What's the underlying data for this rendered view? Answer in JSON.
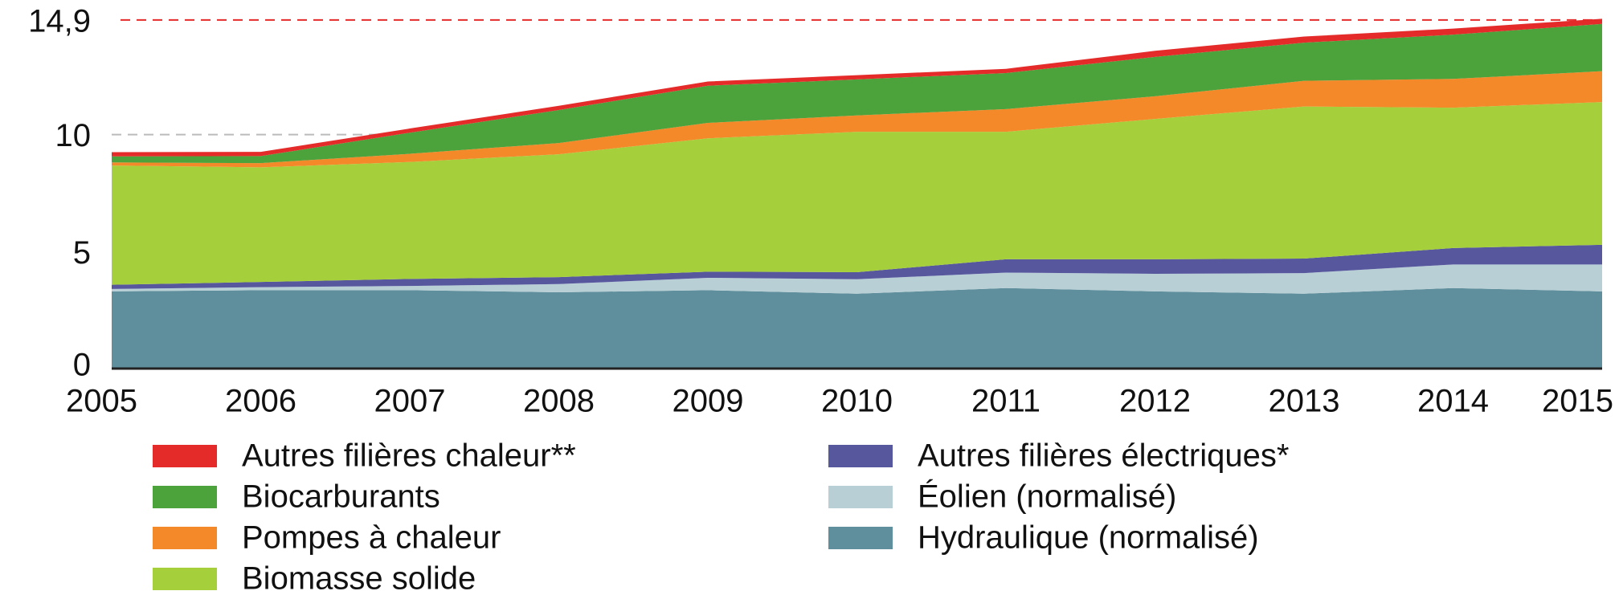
{
  "chart_data": {
    "type": "stacked-area",
    "categories": [
      "2005",
      "2006",
      "2007",
      "2008",
      "2009",
      "2010",
      "2011",
      "2012",
      "2013",
      "2014",
      "2015"
    ],
    "series": [
      {
        "name": "Hydraulique (normalisé)",
        "color": "#5f8f9c",
        "values": [
          3.3,
          3.35,
          3.35,
          3.26,
          3.35,
          3.2,
          3.44,
          3.3,
          3.2,
          3.44,
          3.3
        ]
      },
      {
        "name": "Éolien (normalisé)",
        "color": "#b9cfd6",
        "values": [
          0.1,
          0.13,
          0.18,
          0.35,
          0.53,
          0.62,
          0.66,
          0.75,
          0.88,
          1.01,
          1.15
        ]
      },
      {
        "name": "Autres filières électriques*",
        "color": "#57579e",
        "values": [
          0.18,
          0.22,
          0.3,
          0.3,
          0.26,
          0.3,
          0.57,
          0.62,
          0.62,
          0.7,
          0.84
        ]
      },
      {
        "name": "Biomasse solide",
        "color": "#a6cf3c",
        "values": [
          5.1,
          4.9,
          5.0,
          5.25,
          5.7,
          6.0,
          5.45,
          6.0,
          6.5,
          6.0,
          6.1
        ]
      },
      {
        "name": "Pompes à chaleur",
        "color": "#f4892a",
        "values": [
          0.13,
          0.18,
          0.35,
          0.48,
          0.66,
          0.7,
          0.97,
          0.97,
          1.1,
          1.23,
          1.32
        ]
      },
      {
        "name": "Biocarburants",
        "color": "#4ca23b",
        "values": [
          0.26,
          0.3,
          0.9,
          1.41,
          1.59,
          1.54,
          1.54,
          1.68,
          1.63,
          1.89,
          2.02
        ]
      },
      {
        "name": "Autres filières chaleur**",
        "color": "#e52a2a",
        "values": [
          0.18,
          0.18,
          0.18,
          0.18,
          0.18,
          0.18,
          0.18,
          0.26,
          0.26,
          0.26,
          0.22
        ]
      }
    ],
    "ylim": [
      0,
      15.1
    ],
    "yticks": [
      0,
      5,
      10,
      {
        "value": 14.9,
        "label": "14,9"
      }
    ],
    "grid": true,
    "top_tick_color": "#e52a2a"
  }
}
